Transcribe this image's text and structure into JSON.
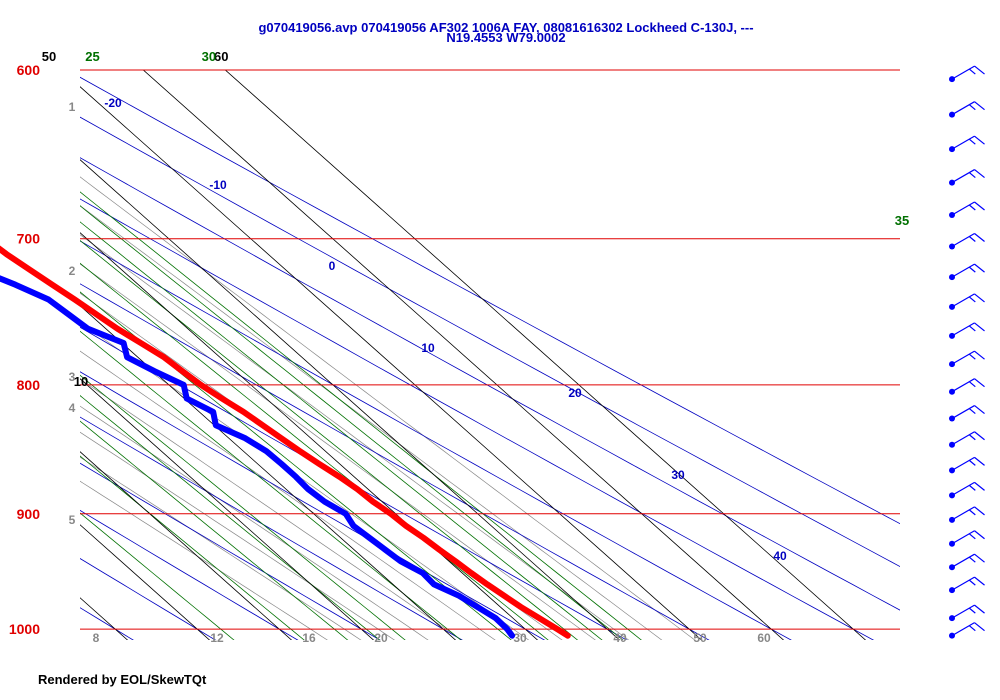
{
  "header": {
    "line1": "g070419056.avp 070419056 AF302 1006A FAY, 08081616302 Lockheed C-130J, ---",
    "line2": "N19.4553 W79.0002"
  },
  "footer": {
    "text": "Rendered by EOL/SkewTQt"
  },
  "colors": {
    "isobar": "#e00000",
    "isotherm": "#000000",
    "mixing_ratio": "#007000",
    "dry_adiabat_label": "#0000c0",
    "moist_adiabat": "#888888",
    "temperature": "#ff0000",
    "dewpoint": "#0000ff",
    "wind": "#0000ff",
    "gray_label": "#888888",
    "title": "#0000c0"
  },
  "chart_data": {
    "type": "line",
    "title": "g070419056.avp 070419056 AF302 1006A FAY, 08081616302 Lockheed C-130J, ---",
    "subtitle": "N19.4553 W79.0002",
    "xlabel": "",
    "ylabel": "",
    "pressure_range_hpa": [
      1010,
      600
    ],
    "log_pressure": true,
    "isobars_hpa": [
      600,
      700,
      800,
      900,
      1000
    ],
    "isotherm_labels": [
      "10",
      "20",
      "30",
      "40",
      "50",
      "60"
    ],
    "mixing_ratio_labels": [
      "5",
      "10",
      "15",
      "20",
      "25",
      "30",
      "35"
    ],
    "dry_adiabat_labels": [
      "-20",
      "-10",
      "0",
      "10",
      "20",
      "30",
      "40"
    ],
    "bottom_gray_labels": [
      "8",
      "12",
      "16",
      "20",
      "30",
      "40",
      "50",
      "60"
    ],
    "left_gray_labels": [
      "1",
      "2",
      "3",
      "4",
      "5"
    ],
    "series": [
      {
        "name": "Temperature",
        "pressure_hpa": [
          1006,
          1000,
          990,
          980,
          970,
          960,
          950,
          940,
          930,
          920,
          910,
          900,
          890,
          880,
          870,
          860,
          850,
          840,
          830,
          820,
          810,
          800,
          790,
          780,
          770,
          760,
          750,
          740,
          730,
          720,
          710,
          700,
          690,
          680,
          670,
          660,
          650,
          640,
          630,
          620,
          610,
          600
        ],
        "values": [
          24.3,
          23.9,
          23.2,
          22.5,
          22.0,
          21.5,
          21.1,
          20.8,
          20.4,
          20.1,
          19.6,
          19.4,
          18.9,
          18.7,
          18.2,
          17.5,
          16.9,
          16.4,
          15.9,
          15.4,
          14.6,
          13.9,
          13.5,
          13.2,
          12.3,
          11.4,
          10.8,
          10.2,
          9.5,
          8.8,
          8.1,
          7.7,
          7.0,
          6.4,
          5.9,
          5.3,
          4.9,
          4.5,
          3.7,
          2.7,
          2.1,
          1.5
        ]
      },
      {
        "name": "Dewpoint",
        "pressure_hpa": [
          1006,
          1000,
          990,
          980,
          970,
          960,
          950,
          940,
          930,
          920,
          910,
          900,
          890,
          880,
          870,
          860,
          850,
          840,
          830,
          820,
          810,
          800,
          790,
          780,
          770,
          760,
          750,
          740,
          730,
          720,
          710,
          700,
          690,
          680,
          670,
          660,
          650,
          640,
          630,
          620,
          610,
          600
        ],
        "values": [
          17.5,
          17.8,
          17.9,
          17.2,
          16.5,
          15.0,
          15.2,
          14.1,
          13.8,
          13.5,
          13.2,
          13.9,
          13.0,
          12.7,
          12.9,
          12.9,
          12.8,
          12.0,
          10.2,
          11.7,
          10.3,
          11.8,
          10.1,
          8.7,
          10.2,
          7.8,
          7.4,
          7.0,
          5.0,
          2.5,
          4.3,
          3.9,
          0.5,
          2.0,
          0.2,
          -1.0,
          -2.0,
          -3.5,
          -5.5,
          -3.5,
          -7.5,
          -9.0
        ]
      }
    ],
    "wind_barbs": [
      {
        "pressure_hpa": 1006,
        "speed_kt": 15,
        "direction_deg": 60
      },
      {
        "pressure_hpa": 990,
        "speed_kt": 15,
        "direction_deg": 60
      },
      {
        "pressure_hpa": 965,
        "speed_kt": 15,
        "direction_deg": 60
      },
      {
        "pressure_hpa": 945,
        "speed_kt": 15,
        "direction_deg": 60
      },
      {
        "pressure_hpa": 925,
        "speed_kt": 15,
        "direction_deg": 60
      },
      {
        "pressure_hpa": 905,
        "speed_kt": 15,
        "direction_deg": 60
      },
      {
        "pressure_hpa": 885,
        "speed_kt": 15,
        "direction_deg": 60
      },
      {
        "pressure_hpa": 865,
        "speed_kt": 15,
        "direction_deg": 60
      },
      {
        "pressure_hpa": 845,
        "speed_kt": 15,
        "direction_deg": 60
      },
      {
        "pressure_hpa": 825,
        "speed_kt": 15,
        "direction_deg": 60
      },
      {
        "pressure_hpa": 805,
        "speed_kt": 15,
        "direction_deg": 60
      },
      {
        "pressure_hpa": 785,
        "speed_kt": 15,
        "direction_deg": 60
      },
      {
        "pressure_hpa": 765,
        "speed_kt": 15,
        "direction_deg": 60
      },
      {
        "pressure_hpa": 745,
        "speed_kt": 15,
        "direction_deg": 60
      },
      {
        "pressure_hpa": 725,
        "speed_kt": 15,
        "direction_deg": 60
      },
      {
        "pressure_hpa": 705,
        "speed_kt": 15,
        "direction_deg": 60
      },
      {
        "pressure_hpa": 685,
        "speed_kt": 15,
        "direction_deg": 60
      },
      {
        "pressure_hpa": 665,
        "speed_kt": 15,
        "direction_deg": 60
      },
      {
        "pressure_hpa": 645,
        "speed_kt": 15,
        "direction_deg": 60
      },
      {
        "pressure_hpa": 625,
        "speed_kt": 15,
        "direction_deg": 60
      },
      {
        "pressure_hpa": 605,
        "speed_kt": 15,
        "direction_deg": 60
      }
    ],
    "grid": true
  }
}
